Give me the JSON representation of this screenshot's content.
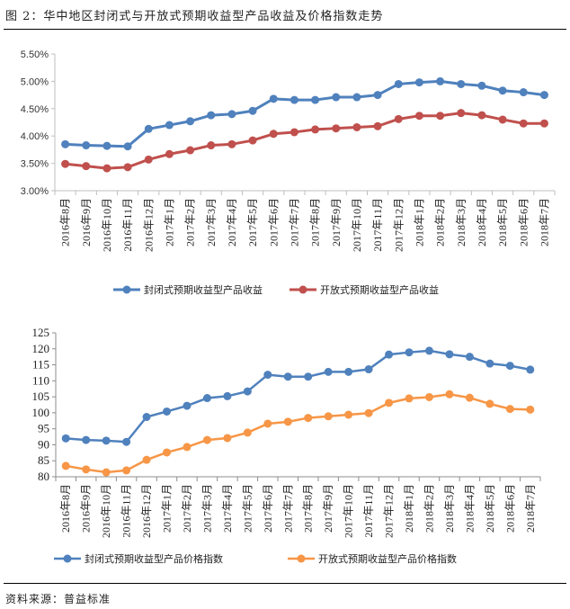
{
  "figure": {
    "title": "图 2：华中地区封闭式与开放式预期收益型产品收益及价格指数走势",
    "source": "资料来源：普益标准"
  },
  "chart_data": [
    {
      "type": "line",
      "title": "",
      "xlabel": "",
      "ylabel": "",
      "ylim": [
        3.0,
        5.5
      ],
      "yticks": [
        "3.00%",
        "3.50%",
        "4.00%",
        "4.50%",
        "5.00%",
        "5.50%"
      ],
      "ytick_values": [
        3.0,
        3.5,
        4.0,
        4.5,
        5.0,
        5.5
      ],
      "grid": false,
      "legend_position": "bottom",
      "categories": [
        "2016年8月",
        "2016年9月",
        "2016年10月",
        "2016年11月",
        "2016年12月",
        "2017年1月",
        "2017年2月",
        "2017年3月",
        "2017年4月",
        "2017年5月",
        "2017年6月",
        "2017年7月",
        "2017年8月",
        "2017年9月",
        "2017年10月",
        "2017年11月",
        "2017年12月",
        "2018年1月",
        "2018年2月",
        "2018年3月",
        "2018年4月",
        "2018年5月",
        "2018年6月",
        "2018年7月"
      ],
      "series": [
        {
          "name": "封闭式预期收益型产品收益",
          "color": "#4f81bd",
          "values": [
            3.85,
            3.83,
            3.82,
            3.81,
            4.13,
            4.2,
            4.27,
            4.38,
            4.4,
            4.46,
            4.68,
            4.66,
            4.66,
            4.71,
            4.71,
            4.75,
            4.95,
            4.98,
            5.0,
            4.95,
            4.92,
            4.83,
            4.8,
            4.75
          ]
        },
        {
          "name": "开放式预期收益型产品收益",
          "color": "#c0504d",
          "values": [
            3.49,
            3.45,
            3.41,
            3.43,
            3.57,
            3.67,
            3.74,
            3.83,
            3.85,
            3.92,
            4.04,
            4.07,
            4.12,
            4.14,
            4.16,
            4.18,
            4.31,
            4.37,
            4.37,
            4.42,
            4.38,
            4.3,
            4.23,
            4.23
          ]
        }
      ]
    },
    {
      "type": "line",
      "title": "",
      "xlabel": "",
      "ylabel": "",
      "ylim": [
        80,
        125
      ],
      "yticks": [
        "80",
        "85",
        "90",
        "95",
        "100",
        "105",
        "110",
        "115",
        "120",
        "125"
      ],
      "ytick_values": [
        80,
        85,
        90,
        95,
        100,
        105,
        110,
        115,
        120,
        125
      ],
      "grid": false,
      "legend_position": "bottom",
      "categories": [
        "2016年8月",
        "2016年9月",
        "2016年10月",
        "2016年11月",
        "2016年12月",
        "2017年1月",
        "2017年2月",
        "2017年3月",
        "2017年4月",
        "2017年5月",
        "2017年6月",
        "2017年7月",
        "2017年8月",
        "2017年9月",
        "2017年10月",
        "2017年11月",
        "2017年12月",
        "2018年1月",
        "2018年2月",
        "2018年3月",
        "2018年4月",
        "2018年5月",
        "2018年6月",
        "2018年7月"
      ],
      "series": [
        {
          "name": "封闭式预期收益型产品价格指数",
          "color": "#4f81bd",
          "values": [
            92.0,
            91.5,
            91.3,
            90.9,
            98.7,
            100.4,
            102.2,
            104.6,
            105.2,
            106.7,
            111.9,
            111.3,
            111.3,
            112.8,
            112.8,
            113.6,
            118.2,
            118.9,
            119.4,
            118.3,
            117.5,
            115.4,
            114.7,
            113.5
          ]
        },
        {
          "name": "开放式预期收益型产品价格指数",
          "color": "#f79646",
          "values": [
            83.4,
            82.3,
            81.4,
            82.0,
            85.3,
            87.6,
            89.3,
            91.5,
            92.1,
            93.8,
            96.6,
            97.2,
            98.4,
            98.9,
            99.4,
            99.9,
            103.1,
            104.5,
            104.9,
            105.8,
            104.7,
            102.8,
            101.2,
            101.0
          ]
        }
      ]
    }
  ]
}
